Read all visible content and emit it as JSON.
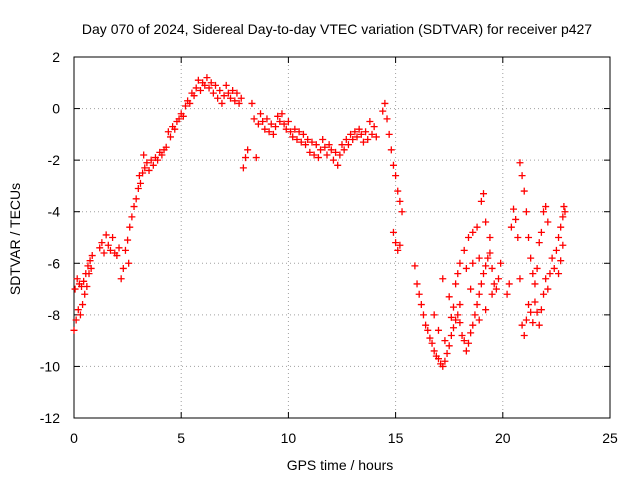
{
  "chart_data": {
    "type": "scatter",
    "title": "Day 070 of 2024, Sidereal Day-to-day VTEC variation (SDTVAR) for receiver p427",
    "xlabel": "GPS time / hours",
    "ylabel": "SDTVAR / TECUs",
    "xlim": [
      0,
      25
    ],
    "ylim": [
      -12,
      2
    ],
    "xticks": [
      0,
      5,
      10,
      15,
      20,
      25
    ],
    "yticks": [
      -12,
      -10,
      -8,
      -6,
      -4,
      -2,
      0,
      2
    ],
    "grid": true,
    "marker": "plus",
    "color": "#ff0000",
    "series": [
      {
        "points": [
          [
            0.0,
            -8.6
          ],
          [
            0.05,
            -7.0
          ],
          [
            0.1,
            -8.2
          ],
          [
            0.15,
            -6.6
          ],
          [
            0.2,
            -7.8
          ],
          [
            0.25,
            -6.8
          ],
          [
            0.3,
            -8.0
          ],
          [
            0.35,
            -6.9
          ],
          [
            0.4,
            -7.6
          ],
          [
            0.45,
            -6.7
          ],
          [
            0.5,
            -7.2
          ],
          [
            0.55,
            -6.4
          ],
          [
            0.6,
            -6.9
          ],
          [
            0.65,
            -6.1
          ],
          [
            0.7,
            -6.4
          ],
          [
            0.75,
            -5.9
          ],
          [
            0.8,
            -6.2
          ],
          [
            0.85,
            -5.7
          ],
          [
            1.2,
            -5.4
          ],
          [
            1.3,
            -5.2
          ],
          [
            1.4,
            -5.6
          ],
          [
            1.5,
            -4.9
          ],
          [
            1.6,
            -5.3
          ],
          [
            1.7,
            -5.5
          ],
          [
            1.8,
            -5.0
          ],
          [
            1.9,
            -5.6
          ],
          [
            2.0,
            -5.7
          ],
          [
            2.1,
            -5.4
          ],
          [
            2.2,
            -6.6
          ],
          [
            2.3,
            -6.2
          ],
          [
            2.4,
            -5.5
          ],
          [
            2.5,
            -5.1
          ],
          [
            2.55,
            -6.0
          ],
          [
            2.6,
            -4.6
          ],
          [
            2.7,
            -4.2
          ],
          [
            2.8,
            -3.8
          ],
          [
            2.9,
            -3.5
          ],
          [
            3.0,
            -3.1
          ],
          [
            3.05,
            -2.6
          ],
          [
            3.1,
            -2.9
          ],
          [
            3.2,
            -2.5
          ],
          [
            3.25,
            -1.8
          ],
          [
            3.3,
            -2.3
          ],
          [
            3.4,
            -2.1
          ],
          [
            3.5,
            -2.4
          ],
          [
            3.6,
            -2.0
          ],
          [
            3.7,
            -2.2
          ],
          [
            3.8,
            -1.9
          ],
          [
            3.9,
            -2.0
          ],
          [
            4.0,
            -1.7
          ],
          [
            4.1,
            -1.8
          ],
          [
            4.2,
            -1.6
          ],
          [
            4.3,
            -1.5
          ],
          [
            4.4,
            -0.9
          ],
          [
            4.5,
            -1.1
          ],
          [
            4.6,
            -0.7
          ],
          [
            4.7,
            -0.8
          ],
          [
            4.8,
            -0.5
          ],
          [
            4.9,
            -0.4
          ],
          [
            5.0,
            -0.2
          ],
          [
            5.1,
            -0.3
          ],
          [
            5.2,
            0.1
          ],
          [
            5.3,
            0.3
          ],
          [
            5.4,
            0.2
          ],
          [
            5.5,
            0.6
          ],
          [
            5.6,
            0.5
          ],
          [
            5.7,
            0.8
          ],
          [
            5.8,
            1.1
          ],
          [
            5.9,
            0.7
          ],
          [
            6.0,
            1.0
          ],
          [
            6.1,
            0.9
          ],
          [
            6.2,
            1.2
          ],
          [
            6.3,
            0.8
          ],
          [
            6.4,
            1.0
          ],
          [
            6.5,
            0.6
          ],
          [
            6.6,
            0.9
          ],
          [
            6.7,
            0.4
          ],
          [
            6.8,
            0.7
          ],
          [
            6.9,
            0.2
          ],
          [
            7.0,
            0.5
          ],
          [
            7.1,
            0.9
          ],
          [
            7.2,
            0.6
          ],
          [
            7.3,
            0.4
          ],
          [
            7.4,
            0.7
          ],
          [
            7.5,
            0.3
          ],
          [
            7.6,
            0.6
          ],
          [
            7.7,
            0.2
          ],
          [
            7.8,
            0.4
          ],
          [
            7.9,
            -2.3
          ],
          [
            8.0,
            -1.9
          ],
          [
            8.1,
            -1.6
          ],
          [
            8.5,
            -1.9
          ],
          [
            8.3,
            0.2
          ],
          [
            8.4,
            -0.4
          ],
          [
            8.6,
            -0.6
          ],
          [
            8.7,
            -0.2
          ],
          [
            8.8,
            -0.5
          ],
          [
            8.9,
            -0.8
          ],
          [
            9.0,
            -0.4
          ],
          [
            9.1,
            -0.9
          ],
          [
            9.2,
            -0.6
          ],
          [
            9.3,
            -1.0
          ],
          [
            9.4,
            -0.7
          ],
          [
            9.5,
            -0.3
          ],
          [
            9.6,
            -0.5
          ],
          [
            9.7,
            -0.2
          ],
          [
            9.8,
            -0.6
          ],
          [
            9.9,
            -0.8
          ],
          [
            10.0,
            -0.5
          ],
          [
            10.1,
            -0.9
          ],
          [
            10.2,
            -1.1
          ],
          [
            10.3,
            -0.8
          ],
          [
            10.4,
            -1.2
          ],
          [
            10.5,
            -0.9
          ],
          [
            10.6,
            -1.3
          ],
          [
            10.7,
            -1.0
          ],
          [
            10.8,
            -1.4
          ],
          [
            10.9,
            -1.2
          ],
          [
            11.0,
            -1.7
          ],
          [
            11.1,
            -1.3
          ],
          [
            11.2,
            -1.8
          ],
          [
            11.3,
            -1.4
          ],
          [
            11.4,
            -1.9
          ],
          [
            11.5,
            -1.6
          ],
          [
            11.6,
            -1.2
          ],
          [
            11.7,
            -1.5
          ],
          [
            11.8,
            -1.8
          ],
          [
            11.9,
            -1.4
          ],
          [
            12.0,
            -1.6
          ],
          [
            12.1,
            -2.0
          ],
          [
            12.2,
            -1.7
          ],
          [
            12.3,
            -2.2
          ],
          [
            12.4,
            -1.8
          ],
          [
            12.5,
            -1.4
          ],
          [
            12.6,
            -1.6
          ],
          [
            12.7,
            -1.2
          ],
          [
            12.8,
            -1.4
          ],
          [
            12.9,
            -1.0
          ],
          [
            13.0,
            -1.2
          ],
          [
            13.1,
            -0.9
          ],
          [
            13.2,
            -1.1
          ],
          [
            13.3,
            -0.8
          ],
          [
            13.4,
            -1.0
          ],
          [
            13.5,
            -1.3
          ],
          [
            13.6,
            -0.9
          ],
          [
            13.7,
            -1.2
          ],
          [
            13.8,
            -0.5
          ],
          [
            13.9,
            -1.0
          ],
          [
            14.0,
            -0.7
          ],
          [
            14.1,
            -1.1
          ],
          [
            14.4,
            -0.1
          ],
          [
            14.5,
            0.2
          ],
          [
            14.6,
            -0.4
          ],
          [
            14.7,
            -1.0
          ],
          [
            14.8,
            -1.6
          ],
          [
            14.9,
            -2.2
          ],
          [
            15.0,
            -2.6
          ],
          [
            15.1,
            -3.2
          ],
          [
            15.2,
            -3.6
          ],
          [
            15.3,
            -4.0
          ],
          [
            14.9,
            -4.8
          ],
          [
            15.0,
            -5.2
          ],
          [
            15.1,
            -5.5
          ],
          [
            15.2,
            -5.3
          ],
          [
            15.9,
            -6.1
          ],
          [
            16.0,
            -6.8
          ],
          [
            16.1,
            -7.2
          ],
          [
            16.2,
            -7.6
          ],
          [
            16.3,
            -8.0
          ],
          [
            16.4,
            -8.4
          ],
          [
            16.5,
            -8.6
          ],
          [
            16.6,
            -8.9
          ],
          [
            16.7,
            -9.1
          ],
          [
            16.8,
            -9.4
          ],
          [
            16.9,
            -9.6
          ],
          [
            17.0,
            -9.7
          ],
          [
            17.1,
            -9.9
          ],
          [
            17.2,
            -10.0
          ],
          [
            17.3,
            -9.8
          ],
          [
            17.4,
            -9.5
          ],
          [
            17.5,
            -9.2
          ],
          [
            17.6,
            -8.8
          ],
          [
            17.7,
            -8.5
          ],
          [
            17.8,
            -8.2
          ],
          [
            17.9,
            -8.0
          ],
          [
            18.0,
            -8.3
          ],
          [
            18.1,
            -8.8
          ],
          [
            18.2,
            -9.0
          ],
          [
            18.3,
            -9.4
          ],
          [
            18.4,
            -9.1
          ],
          [
            18.5,
            -8.7
          ],
          [
            18.6,
            -8.4
          ],
          [
            18.7,
            -8.0
          ],
          [
            18.8,
            -7.6
          ],
          [
            18.9,
            -7.2
          ],
          [
            19.0,
            -6.8
          ],
          [
            19.1,
            -6.4
          ],
          [
            19.2,
            -6.1
          ],
          [
            19.3,
            -5.8
          ],
          [
            19.4,
            -5.6
          ],
          [
            17.8,
            -6.8
          ],
          [
            17.9,
            -6.4
          ],
          [
            18.0,
            -6.0
          ],
          [
            18.2,
            -5.5
          ],
          [
            18.4,
            -5.0
          ],
          [
            18.6,
            -4.8
          ],
          [
            18.8,
            -4.6
          ],
          [
            19.0,
            -3.6
          ],
          [
            19.1,
            -3.3
          ],
          [
            19.2,
            -4.4
          ],
          [
            19.4,
            -5.0
          ],
          [
            19.5,
            -6.2
          ],
          [
            19.6,
            -6.8
          ],
          [
            19.7,
            -7.0
          ],
          [
            19.8,
            -6.6
          ],
          [
            19.9,
            -6.0
          ],
          [
            17.2,
            -6.6
          ],
          [
            17.5,
            -7.3
          ],
          [
            17.7,
            -7.7
          ],
          [
            18.3,
            -6.2
          ],
          [
            18.6,
            -6.0
          ],
          [
            18.9,
            -5.8
          ],
          [
            19.2,
            -7.8
          ],
          [
            19.5,
            -7.2
          ],
          [
            16.8,
            -8.0
          ],
          [
            17.0,
            -8.6
          ],
          [
            17.3,
            -9.0
          ],
          [
            17.6,
            -8.1
          ],
          [
            18.0,
            -7.6
          ],
          [
            18.5,
            -7.0
          ],
          [
            18.9,
            -8.2
          ],
          [
            20.2,
            -7.2
          ],
          [
            20.3,
            -6.8
          ],
          [
            20.4,
            -4.6
          ],
          [
            20.5,
            -3.9
          ],
          [
            20.6,
            -4.3
          ],
          [
            20.7,
            -5.0
          ],
          [
            20.8,
            -6.6
          ],
          [
            20.9,
            -8.4
          ],
          [
            21.0,
            -8.8
          ],
          [
            21.1,
            -8.2
          ],
          [
            21.2,
            -7.6
          ],
          [
            21.3,
            -7.9
          ],
          [
            21.4,
            -8.3
          ],
          [
            21.5,
            -7.5
          ],
          [
            21.6,
            -7.9
          ],
          [
            21.7,
            -8.4
          ],
          [
            21.8,
            -7.8
          ],
          [
            21.9,
            -7.2
          ],
          [
            22.0,
            -6.6
          ],
          [
            22.1,
            -7.0
          ],
          [
            22.2,
            -6.4
          ],
          [
            20.8,
            -2.1
          ],
          [
            20.9,
            -2.6
          ],
          [
            21.0,
            -3.2
          ],
          [
            21.1,
            -4.0
          ],
          [
            21.2,
            -5.0
          ],
          [
            21.3,
            -5.8
          ],
          [
            21.4,
            -6.4
          ],
          [
            21.5,
            -6.8
          ],
          [
            21.6,
            -6.2
          ],
          [
            21.7,
            -5.2
          ],
          [
            21.8,
            -4.8
          ],
          [
            21.9,
            -4.0
          ],
          [
            22.0,
            -3.8
          ],
          [
            22.1,
            -4.4
          ],
          [
            22.3,
            -5.8
          ],
          [
            22.4,
            -6.2
          ],
          [
            22.5,
            -5.5
          ],
          [
            22.6,
            -5.0
          ],
          [
            22.7,
            -4.6
          ],
          [
            22.8,
            -4.2
          ],
          [
            22.85,
            -3.8
          ],
          [
            22.9,
            -4.0
          ],
          [
            22.6,
            -6.4
          ],
          [
            22.7,
            -5.9
          ],
          [
            22.8,
            -5.3
          ]
        ]
      }
    ]
  }
}
